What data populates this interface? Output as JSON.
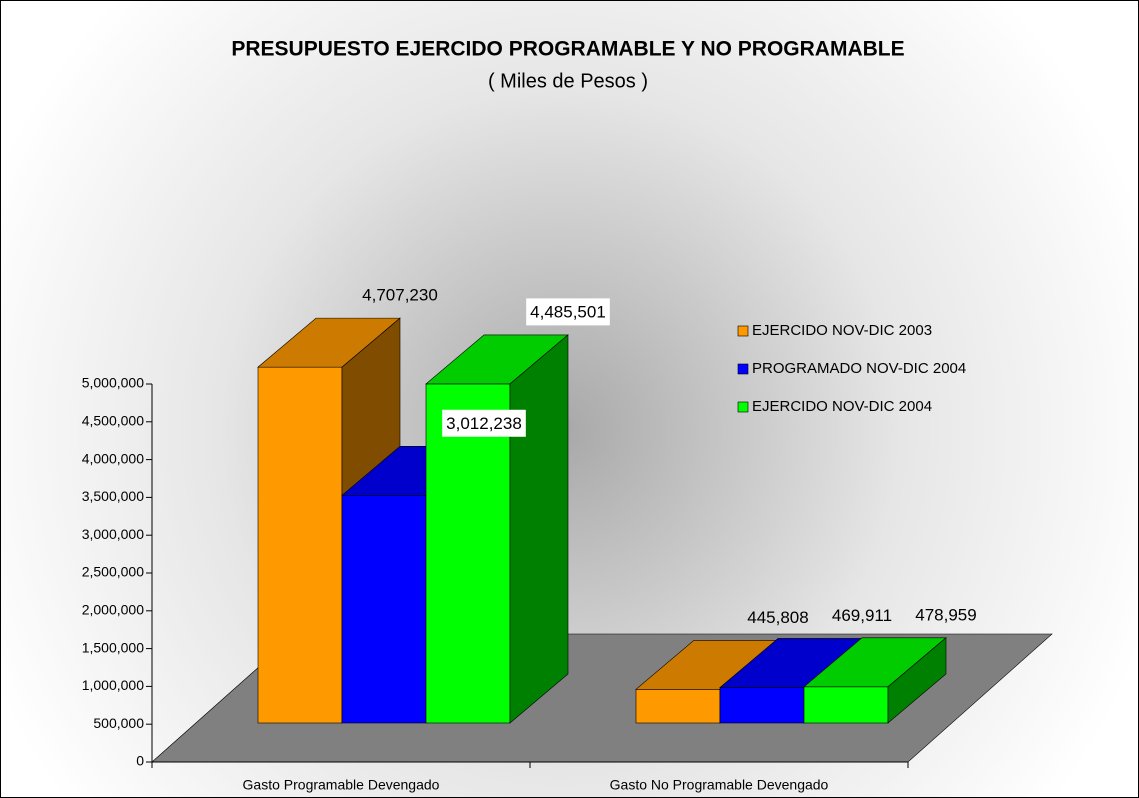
{
  "chart_data": {
    "type": "bar3d",
    "title": "PRESUPUESTO EJERCIDO PROGRAMABLE Y NO PROGRAMABLE",
    "subtitle": "( Miles de Pesos )",
    "categories": [
      "Gasto Programable Devengado",
      "Gasto No Programable Devengado"
    ],
    "series": [
      {
        "name": "EJERCIDO NOV-DIC 2003",
        "color": "#FF9900",
        "values": [
          4707230,
          445808
        ],
        "value_labels": [
          "4,707,230",
          "445,808"
        ]
      },
      {
        "name": "PROGRAMADO NOV-DIC 2004",
        "color": "#0000FF",
        "values": [
          3012238,
          469911
        ],
        "value_labels": [
          "3,012,238",
          "469,911"
        ]
      },
      {
        "name": "EJERCIDO NOV-DIC 2004",
        "color": "#00FF00",
        "values": [
          4485501,
          478959
        ],
        "value_labels": [
          "4,485,501",
          "478,959"
        ]
      }
    ],
    "ylim": [
      0,
      5000000
    ],
    "yticks": [
      0,
      {
        "value": 500000,
        "label": "500,000"
      },
      {
        "value": 1000000,
        "label": "1,000,000"
      },
      {
        "value": 1500000,
        "label": "1,500,000"
      },
      {
        "value": 2000000,
        "label": "2,000,000"
      },
      {
        "value": 2500000,
        "label": "2,500,000"
      },
      {
        "value": 3000000,
        "label": "3,000,000"
      },
      {
        "value": 3500000,
        "label": "3,500,000"
      },
      {
        "value": 4000000,
        "label": "4,000,000"
      },
      {
        "value": 4500000,
        "label": "4,500,000"
      },
      {
        "value": 5000000,
        "label": "5,000,000"
      }
    ],
    "legend": "right"
  }
}
